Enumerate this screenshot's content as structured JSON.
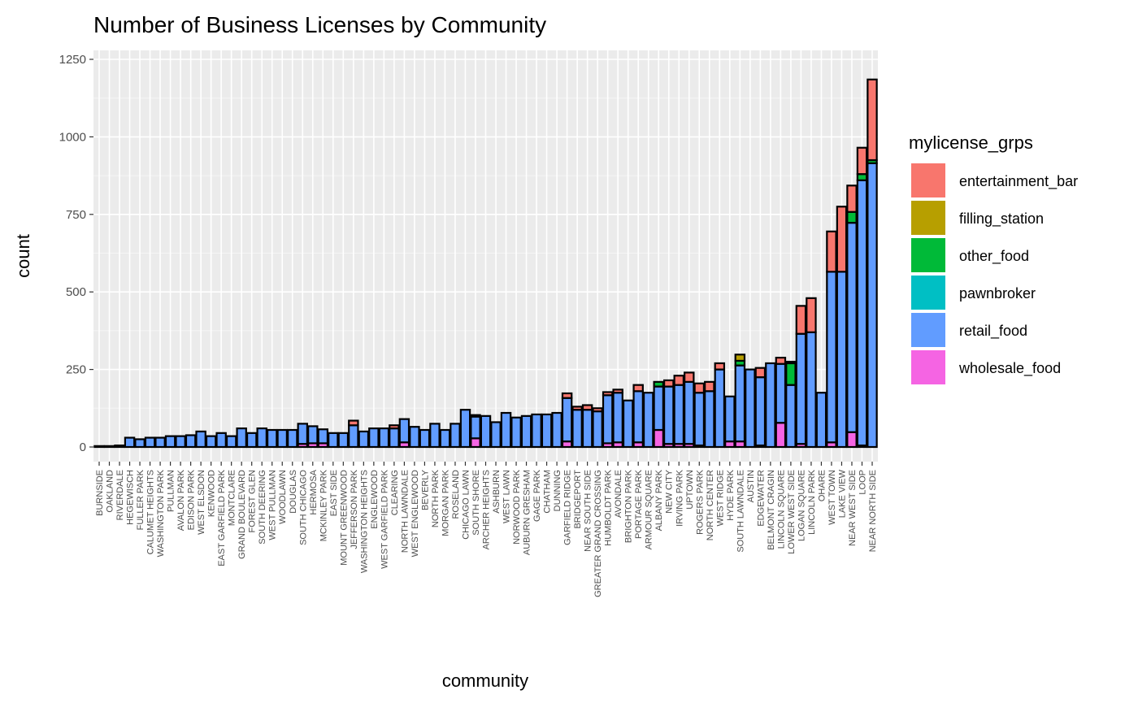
{
  "chart_data": {
    "type": "bar",
    "stacked": true,
    "title": "Number of Business Licenses by Community",
    "xlabel": "community",
    "ylabel": "count",
    "ylim": [
      0,
      1250
    ],
    "yticks": [
      0,
      250,
      500,
      750,
      1000,
      1250
    ],
    "grid": true,
    "legend": {
      "title": "mylicense_grps",
      "position": "right"
    },
    "colors": {
      "entertainment_bar": "#F8766D",
      "filling_station": "#B79F00",
      "other_food": "#00BA38",
      "pawnbroker": "#00BFC4",
      "retail_food": "#619CFF",
      "wholesale_food": "#F564E3"
    },
    "series_order_bottom_to_top": [
      "wholesale_food",
      "retail_food",
      "pawnbroker",
      "other_food",
      "filling_station",
      "entertainment_bar"
    ],
    "legend_order": [
      "entertainment_bar",
      "filling_station",
      "other_food",
      "pawnbroker",
      "retail_food",
      "wholesale_food"
    ],
    "categories": [
      "BURNSIDE",
      "OAKLAND",
      "RIVERDALE",
      "HEGEWISCH",
      "FULLER PARK",
      "CALUMET HEIGHTS",
      "WASHINGTON PARK",
      "PULLMAN",
      "AVALON PARK",
      "EDISON PARK",
      "WEST ELSDON",
      "KENWOOD",
      "EAST GARFIELD PARK",
      "MONTCLARE",
      "GRAND BOULEVARD",
      "FOREST GLEN",
      "SOUTH DEERING",
      "WEST PULLMAN",
      "WOODLAWN",
      "DOUGLAS",
      "SOUTH CHICAGO",
      "HERMOSA",
      "MCKINLEY PARK",
      "EAST SIDE",
      "MOUNT GREENWOOD",
      "JEFFERSON PARK",
      "WASHINGTON HEIGHTS",
      "ENGLEWOOD",
      "WEST GARFIELD PARK",
      "CLEARING",
      "NORTH LAWNDALE",
      "WEST ENGLEWOOD",
      "BEVERLY",
      "NORTH PARK",
      "MORGAN PARK",
      "ROSELAND",
      "CHICAGO LAWN",
      "SOUTH SHORE",
      "ARCHER HEIGHTS",
      "ASHBURN",
      "WEST LAWN",
      "NORWOOD PARK",
      "AUBURN GRESHAM",
      "GAGE PARK",
      "CHATHAM",
      "DUNNING",
      "GARFIELD RIDGE",
      "BRIDGEPORT",
      "NEAR SOUTH SIDE",
      "GREATER GRAND CROSSING",
      "HUMBOLDT PARK",
      "AVONDALE",
      "BRIGHTON PARK",
      "PORTAGE PARK",
      "ARMOUR SQUARE",
      "ALBANY PARK",
      "NEW CITY",
      "IRVING PARK",
      "UPTOWN",
      "ROGERS PARK",
      "NORTH CENTER",
      "WEST RIDGE",
      "HYDE PARK",
      "SOUTH LAWNDALE",
      "AUSTIN",
      "EDGEWATER",
      "BELMONT CRAGIN",
      "LINCOLN SQUARE",
      "LOWER WEST SIDE",
      "LOGAN SQUARE",
      "LINCOLN PARK",
      "OHARE",
      "WEST TOWN",
      "LAKE VIEW",
      "NEAR WEST SIDE",
      "LOOP",
      "NEAR NORTH SIDE"
    ],
    "series": [
      {
        "name": "wholesale_food",
        "values": [
          0,
          0,
          0,
          0,
          0,
          0,
          0,
          0,
          0,
          0,
          0,
          0,
          0,
          0,
          0,
          0,
          0,
          0,
          0,
          0,
          10,
          12,
          12,
          0,
          0,
          0,
          0,
          0,
          0,
          0,
          15,
          0,
          0,
          0,
          0,
          0,
          0,
          28,
          0,
          0,
          0,
          0,
          0,
          0,
          0,
          0,
          18,
          0,
          0,
          0,
          12,
          15,
          0,
          15,
          0,
          55,
          10,
          10,
          10,
          5,
          0,
          0,
          18,
          18,
          0,
          5,
          0,
          78,
          0,
          10,
          0,
          0,
          15,
          0,
          48,
          5,
          0
        ]
      },
      {
        "name": "retail_food",
        "values": [
          3,
          3,
          5,
          30,
          25,
          30,
          30,
          35,
          35,
          38,
          50,
          35,
          45,
          35,
          60,
          45,
          60,
          55,
          55,
          55,
          65,
          55,
          45,
          45,
          45,
          70,
          50,
          60,
          60,
          60,
          75,
          65,
          55,
          75,
          55,
          75,
          120,
          70,
          100,
          80,
          110,
          95,
          100,
          105,
          105,
          110,
          140,
          120,
          120,
          115,
          155,
          160,
          150,
          165,
          175,
          140,
          185,
          190,
          200,
          170,
          180,
          250,
          145,
          245,
          250,
          220,
          270,
          190,
          200,
          355,
          370,
          175,
          550,
          565,
          675,
          855,
          915
        ]
      },
      {
        "name": "pawnbroker",
        "values": [
          0,
          0,
          0,
          0,
          0,
          0,
          0,
          0,
          0,
          0,
          0,
          0,
          0,
          0,
          0,
          0,
          0,
          0,
          0,
          0,
          0,
          0,
          0,
          0,
          0,
          0,
          0,
          0,
          0,
          0,
          0,
          0,
          0,
          0,
          0,
          0,
          0,
          0,
          0,
          0,
          0,
          0,
          0,
          0,
          0,
          0,
          0,
          0,
          0,
          0,
          0,
          0,
          0,
          0,
          0,
          0,
          0,
          0,
          0,
          0,
          0,
          0,
          0,
          0,
          0,
          0,
          0,
          0,
          0,
          0,
          0,
          0,
          0,
          0,
          0,
          0,
          0
        ]
      },
      {
        "name": "other_food",
        "values": [
          0,
          0,
          0,
          0,
          0,
          0,
          0,
          0,
          0,
          0,
          0,
          0,
          0,
          0,
          0,
          0,
          0,
          0,
          0,
          0,
          0,
          0,
          0,
          0,
          0,
          0,
          0,
          0,
          0,
          0,
          0,
          0,
          0,
          0,
          0,
          0,
          0,
          0,
          0,
          0,
          0,
          0,
          0,
          0,
          0,
          0,
          0,
          0,
          0,
          0,
          0,
          0,
          0,
          0,
          0,
          15,
          0,
          0,
          0,
          0,
          0,
          0,
          0,
          15,
          0,
          0,
          0,
          0,
          70,
          0,
          0,
          0,
          0,
          0,
          35,
          20,
          10
        ]
      },
      {
        "name": "filling_station",
        "values": [
          0,
          0,
          0,
          0,
          0,
          0,
          0,
          0,
          0,
          0,
          0,
          0,
          0,
          0,
          0,
          0,
          0,
          0,
          0,
          0,
          0,
          0,
          0,
          0,
          0,
          0,
          0,
          0,
          0,
          0,
          0,
          0,
          0,
          0,
          0,
          0,
          0,
          0,
          0,
          0,
          0,
          0,
          0,
          0,
          0,
          0,
          0,
          0,
          0,
          0,
          0,
          0,
          0,
          0,
          0,
          0,
          0,
          0,
          0,
          0,
          0,
          0,
          0,
          20,
          0,
          0,
          0,
          0,
          0,
          0,
          0,
          0,
          0,
          0,
          0,
          0,
          0
        ]
      },
      {
        "name": "entertainment_bar",
        "values": [
          0,
          0,
          0,
          0,
          0,
          0,
          0,
          0,
          0,
          0,
          0,
          0,
          0,
          0,
          0,
          0,
          0,
          0,
          0,
          0,
          0,
          0,
          0,
          0,
          0,
          15,
          0,
          0,
          0,
          10,
          0,
          0,
          0,
          0,
          0,
          0,
          0,
          5,
          0,
          0,
          0,
          0,
          0,
          0,
          0,
          0,
          15,
          10,
          15,
          10,
          10,
          10,
          0,
          20,
          0,
          0,
          20,
          30,
          30,
          30,
          30,
          20,
          0,
          0,
          0,
          30,
          0,
          20,
          5,
          90,
          110,
          0,
          130,
          210,
          85,
          85,
          260
        ]
      }
    ]
  }
}
